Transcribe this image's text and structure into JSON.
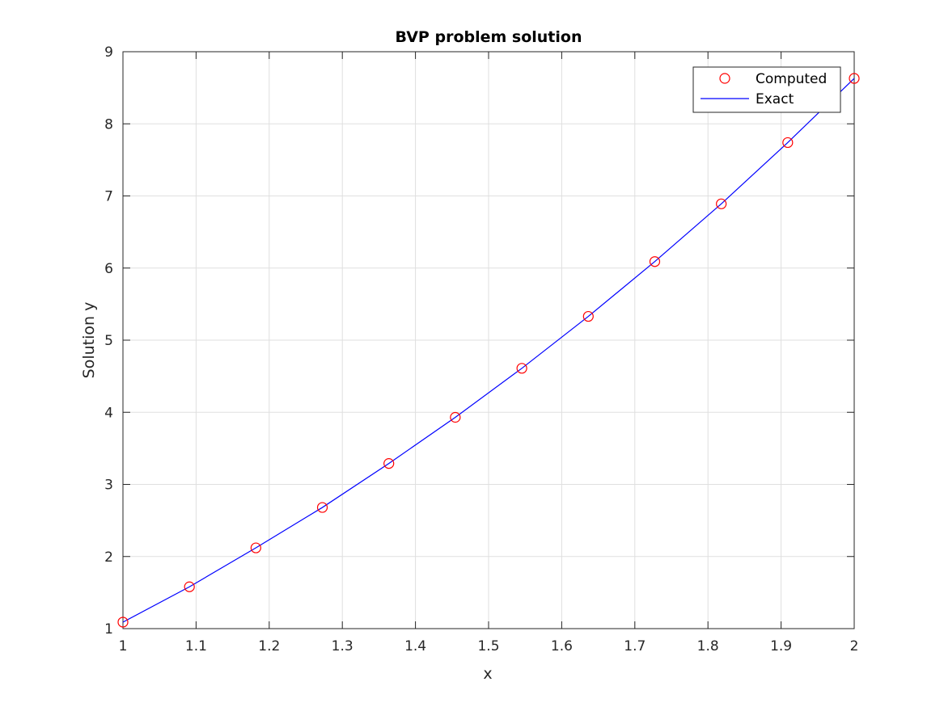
{
  "chart_data": {
    "type": "line",
    "title": "BVP problem solution",
    "xlabel": "x",
    "ylabel": "Solution y",
    "xlim": [
      1,
      2
    ],
    "ylim": [
      1,
      9
    ],
    "xticks": [
      "1",
      "1.1",
      "1.2",
      "1.3",
      "1.4",
      "1.5",
      "1.6",
      "1.7",
      "1.8",
      "1.9",
      "2"
    ],
    "yticks": [
      "1",
      "2",
      "3",
      "4",
      "5",
      "6",
      "7",
      "8",
      "9"
    ],
    "grid": true,
    "legend_position": "top-right",
    "series": [
      {
        "name": "Computed",
        "style": "markers",
        "marker": "circle",
        "color": "#ff0000",
        "x": [
          1.0,
          1.0909,
          1.1818,
          1.2727,
          1.3636,
          1.4545,
          1.5455,
          1.6364,
          1.7273,
          1.8182,
          1.9091,
          2.0
        ],
        "y": [
          1.09,
          1.58,
          2.12,
          2.68,
          3.29,
          3.93,
          4.61,
          5.33,
          6.09,
          6.89,
          7.74,
          8.63
        ]
      },
      {
        "name": "Exact",
        "style": "line",
        "color": "#0000ff",
        "x": [
          1.0,
          1.0909,
          1.1818,
          1.2727,
          1.3636,
          1.4545,
          1.5455,
          1.6364,
          1.7273,
          1.8182,
          1.9091,
          2.0
        ],
        "y": [
          1.09,
          1.58,
          2.12,
          2.68,
          3.29,
          3.93,
          4.61,
          5.33,
          6.09,
          6.89,
          7.74,
          8.63
        ]
      }
    ]
  }
}
